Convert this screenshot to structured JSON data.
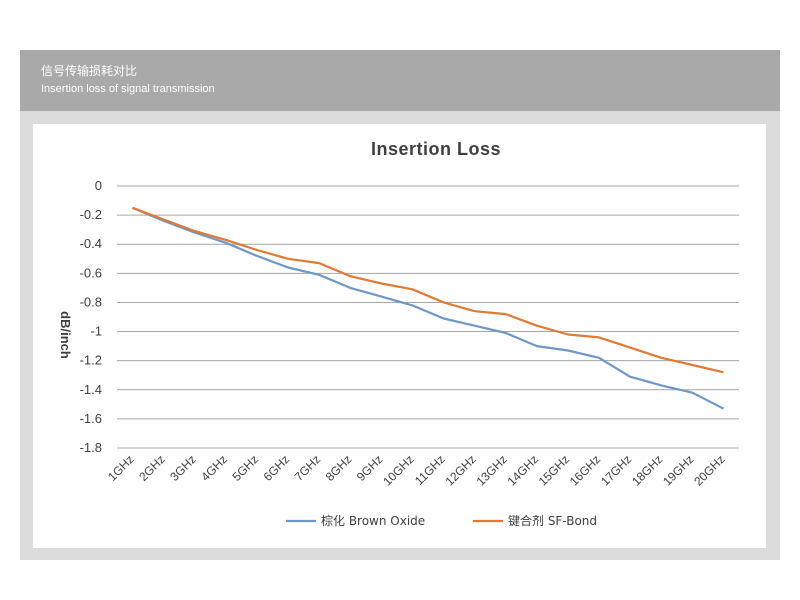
{
  "header": {
    "title_cn": "信号传输损耗对比",
    "title_en": "Insertion loss of signal transmission"
  },
  "colors": {
    "series_1": "#6f97c8",
    "series_2": "#e07a35",
    "grid": "#a6a6a6"
  },
  "chart_data": {
    "type": "line",
    "title": "Insertion Loss",
    "ylabel": "dB/inch",
    "xlabel": "",
    "ylim": [
      -1.8,
      0
    ],
    "y_ticks": [
      0,
      -0.2,
      -0.4,
      -0.6,
      -0.8,
      -1,
      -1.2,
      -1.4,
      -1.6,
      -1.8
    ],
    "y_tick_labels": [
      "0",
      "-0.2",
      "-0.4",
      "-0.6",
      "-0.8",
      "-1",
      "-1.2",
      "-1.4",
      "-1.6",
      "-1.8"
    ],
    "grid": true,
    "legend_position": "bottom",
    "categories": [
      "1GHz",
      "2GHz",
      "3GHz",
      "4GHz",
      "5GHz",
      "6GHz",
      "7GHz",
      "8GHz",
      "9GHz",
      "10GHz",
      "11GHz",
      "12GHz",
      "13GHz",
      "14GHz",
      "15GHz",
      "16GHz",
      "17GHz",
      "18GHz",
      "19GHz",
      "20GHz"
    ],
    "series": [
      {
        "name": "棕化 Brown Oxide",
        "values": [
          -0.15,
          -0.24,
          -0.32,
          -0.39,
          -0.48,
          -0.56,
          -0.61,
          -0.7,
          -0.76,
          -0.82,
          -0.91,
          -0.96,
          -1.01,
          -1.1,
          -1.13,
          -1.18,
          -1.31,
          -1.37,
          -1.42,
          -1.53
        ]
      },
      {
        "name": "键合剂 SF-Bond",
        "values": [
          -0.15,
          -0.23,
          -0.31,
          -0.37,
          -0.44,
          -0.5,
          -0.53,
          -0.62,
          -0.67,
          -0.71,
          -0.8,
          -0.86,
          -0.88,
          -0.96,
          -1.02,
          -1.04,
          -1.11,
          -1.18,
          -1.23,
          -1.28
        ]
      }
    ]
  }
}
